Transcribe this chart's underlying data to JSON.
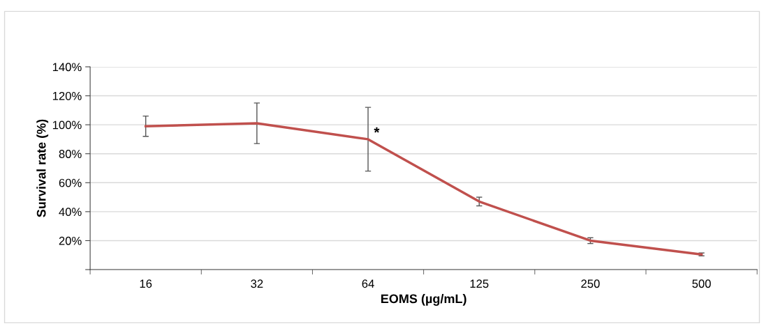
{
  "chart_data": {
    "type": "line",
    "xlabel": "EOMS (µg/mL)",
    "ylabel": "Survival rate (%)",
    "categories": [
      "16",
      "32",
      "64",
      "125",
      "250",
      "500"
    ],
    "series": [
      {
        "color": "#c0504d",
        "values": [
          99,
          101,
          90,
          47,
          20,
          10.5
        ],
        "errors": [
          7,
          14,
          22,
          3,
          2,
          1
        ]
      }
    ],
    "ylim": [
      0,
      140
    ],
    "yticks": [
      {
        "value": 0,
        "label": null
      },
      {
        "value": 20,
        "label": "20%"
      },
      {
        "value": 40,
        "label": "40%"
      },
      {
        "value": 60,
        "label": "60%"
      },
      {
        "value": 80,
        "label": "80%"
      },
      {
        "value": 100,
        "label": "100%"
      },
      {
        "value": 120,
        "label": "120%"
      },
      {
        "value": 140,
        "label": "140%"
      }
    ],
    "grid": "y",
    "marker": "none",
    "line_style": "solid",
    "annotations": [
      {
        "text": "*",
        "x": "64",
        "y": 90
      }
    ]
  }
}
